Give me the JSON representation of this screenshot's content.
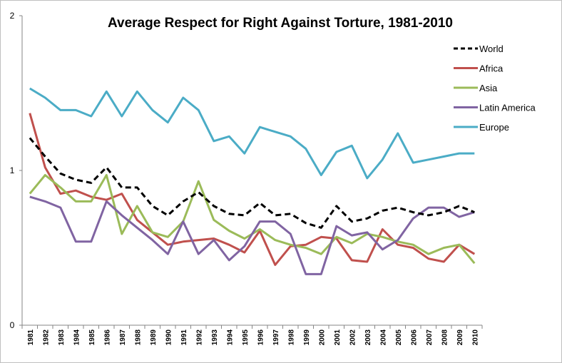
{
  "chart_data": {
    "type": "line",
    "title": "Average Respect for Right Against Torture, 1981-2010",
    "xlabel": "",
    "ylabel": "",
    "ylim": [
      0,
      2
    ],
    "yticks": [
      "0",
      "1",
      "2"
    ],
    "grid": false,
    "legend_position": "right",
    "x": [
      "1981",
      "1982",
      "1983",
      "1984",
      "1985",
      "1986",
      "1987",
      "1988",
      "1989",
      "1990",
      "1991",
      "1992",
      "1993",
      "1994",
      "1995",
      "1996",
      "1997",
      "1998",
      "1999",
      "2000",
      "2001",
      "2002",
      "2003",
      "2004",
      "2005",
      "2006",
      "2007",
      "2008",
      "2009",
      "2010"
    ],
    "series": [
      {
        "name": "World",
        "color": "#000000",
        "dash": "dashed",
        "values": [
          1.21,
          1.09,
          0.98,
          0.94,
          0.92,
          1.02,
          0.89,
          0.89,
          0.77,
          0.71,
          0.8,
          0.86,
          0.77,
          0.72,
          0.71,
          0.79,
          0.71,
          0.72,
          0.66,
          0.63,
          0.77,
          0.67,
          0.69,
          0.74,
          0.76,
          0.73,
          0.71,
          0.73,
          0.77,
          0.73
        ]
      },
      {
        "name": "Africa",
        "color": "#c0504d",
        "values": [
          1.37,
          1.02,
          0.85,
          0.87,
          0.83,
          0.81,
          0.85,
          0.68,
          0.6,
          0.52,
          0.54,
          0.55,
          0.56,
          0.52,
          0.47,
          0.61,
          0.39,
          0.51,
          0.52,
          0.57,
          0.56,
          0.42,
          0.41,
          0.62,
          0.52,
          0.5,
          0.43,
          0.41,
          0.52,
          0.46
        ]
      },
      {
        "name": "Asia",
        "color": "#9bbb59",
        "values": [
          0.85,
          0.97,
          0.89,
          0.8,
          0.8,
          0.97,
          0.59,
          0.77,
          0.6,
          0.57,
          0.67,
          0.93,
          0.68,
          0.61,
          0.56,
          0.62,
          0.55,
          0.52,
          0.5,
          0.46,
          0.57,
          0.53,
          0.59,
          0.57,
          0.54,
          0.52,
          0.46,
          0.5,
          0.52,
          0.4
        ]
      },
      {
        "name": "Latin America",
        "color": "#8064a2",
        "values": [
          0.83,
          0.8,
          0.76,
          0.54,
          0.54,
          0.8,
          0.71,
          0.63,
          0.55,
          0.46,
          0.67,
          0.46,
          0.55,
          0.42,
          0.51,
          0.67,
          0.67,
          0.59,
          0.33,
          0.33,
          0.64,
          0.58,
          0.6,
          0.49,
          0.55,
          0.69,
          0.76,
          0.76,
          0.7,
          0.73
        ]
      },
      {
        "name": "Europe",
        "color": "#4bacc6",
        "values": [
          1.53,
          1.47,
          1.39,
          1.39,
          1.35,
          1.51,
          1.35,
          1.51,
          1.39,
          1.31,
          1.47,
          1.39,
          1.19,
          1.22,
          1.11,
          1.28,
          1.25,
          1.22,
          1.14,
          0.97,
          1.12,
          1.16,
          0.95,
          1.07,
          1.24,
          1.05,
          1.07,
          1.09,
          1.11,
          1.11
        ]
      }
    ]
  }
}
